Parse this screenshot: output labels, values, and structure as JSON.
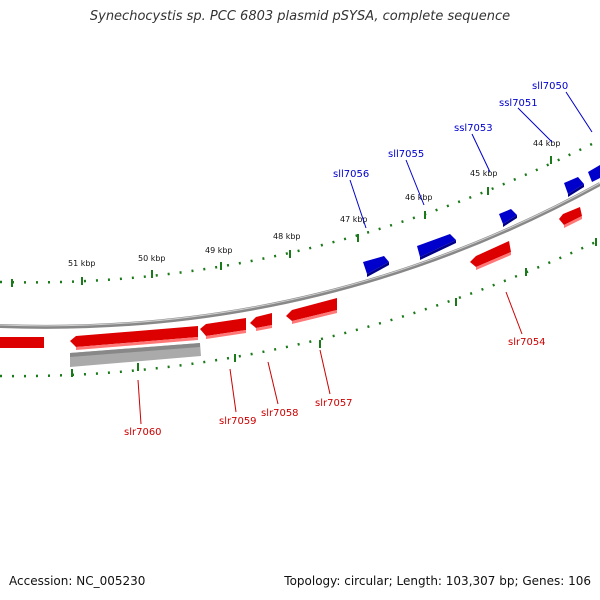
{
  "title": "Synechocystis sp. PCC 6803 plasmid pSYSA, complete sequence",
  "accession_text": "Accession: NC_005230",
  "summary_text": "Topology: circular; Length: 103,307 bp; Genes: 106",
  "colors": {
    "forward": "#0000cc",
    "reverse": "#cc0000",
    "ruler": "#1a7a1a",
    "backbone": "#888888"
  },
  "kbp_ticks": [
    "51 kbp",
    "50 kbp",
    "49 kbp",
    "48 kbp",
    "47 kbp",
    "46 kbp",
    "45 kbp",
    "44 kbp"
  ],
  "forward_genes": [
    "sll7056",
    "sll7055",
    "ssl7053",
    "ssl7051",
    "sll7050"
  ],
  "reverse_genes": [
    "slr7060",
    "slr7059",
    "slr7058",
    "slr7057",
    "slr7054"
  ]
}
